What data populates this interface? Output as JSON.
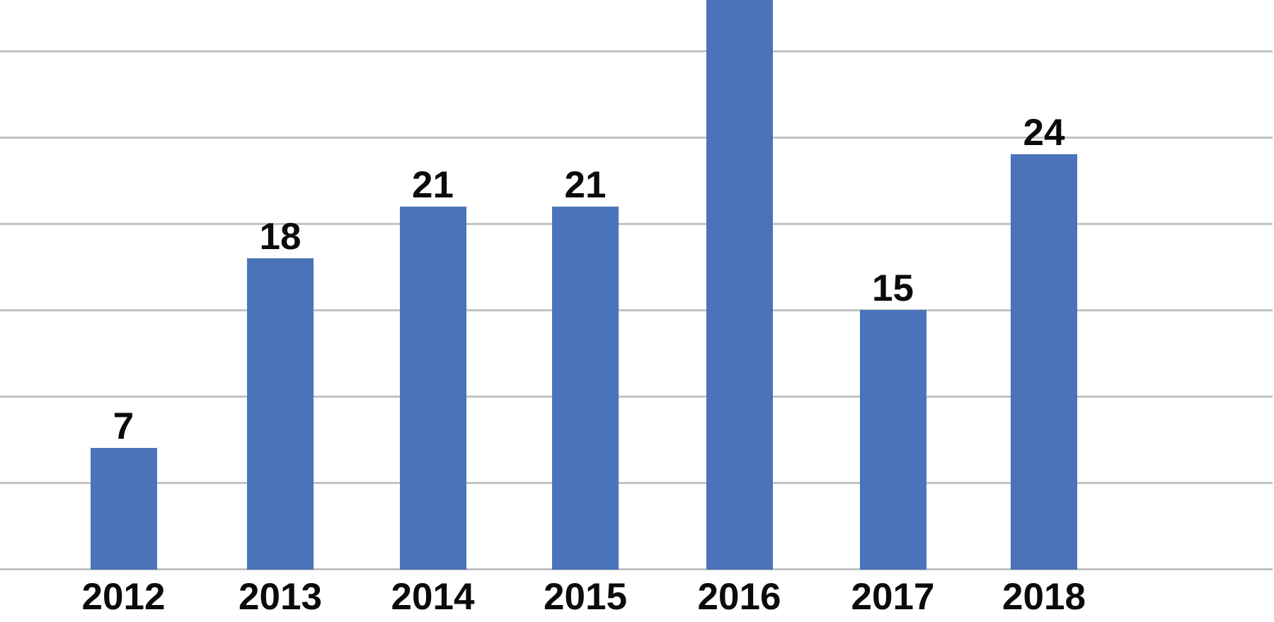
{
  "chart_data": {
    "type": "bar",
    "title": "",
    "subtitle": "",
    "xlabel": "",
    "ylabel": "",
    "categories": [
      "2012",
      "2013",
      "2014",
      "2015",
      "2016",
      "2017",
      "2018"
    ],
    "values": [
      7,
      18,
      21,
      21,
      null,
      15,
      24
    ],
    "data_labels": [
      "7",
      "18",
      "21",
      "21",
      "",
      "15",
      "24"
    ],
    "clipped_bars": [
      "2016"
    ],
    "notes": "The 2016 bar extends beyond the top edge of the image; its value label is not visible in the screenshot.",
    "y_ticks": [
      0,
      5,
      10,
      15,
      20,
      25,
      30
    ],
    "ylim": [
      0,
      33
    ],
    "grid": "horizontal",
    "legend": "none",
    "y_axis_labels_visible": false,
    "colors": {
      "bar": "#4a73b9",
      "gridline": "#c3c3c3",
      "label_text": "#0b0b0b",
      "background": "#ffffff"
    }
  }
}
